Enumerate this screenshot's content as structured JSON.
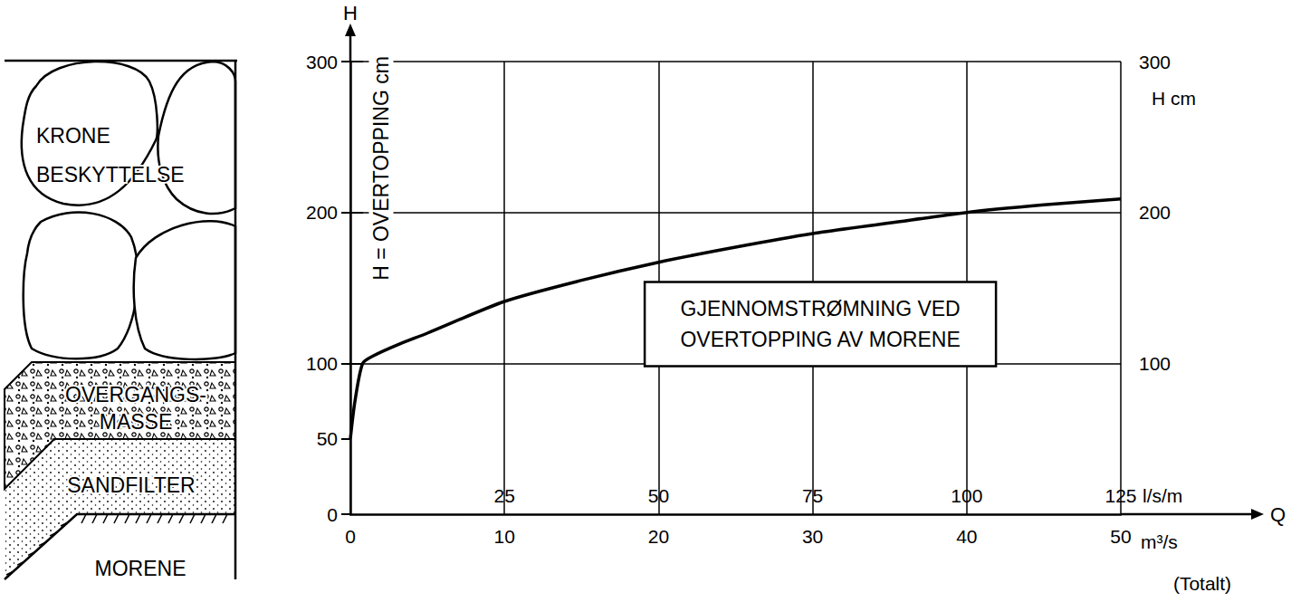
{
  "chart_data": {
    "type": "line",
    "x": [
      0,
      0.3,
      0.8,
      1.5,
      3,
      5,
      10,
      15,
      20,
      25,
      30,
      35,
      40,
      45,
      50
    ],
    "values": [
      50,
      75,
      100,
      105,
      112,
      120,
      141,
      155,
      167,
      177,
      186,
      193,
      200,
      205,
      209
    ],
    "color": "#000000",
    "line_style": "solid",
    "xlim": [
      0,
      50
    ],
    "xticks": [
      0,
      10,
      20,
      30,
      40,
      50
    ],
    "xlabel": "m³/s",
    "xlabel_note": "(Totalt)",
    "x_arrow_label": "Q",
    "x2lim": [
      0,
      125
    ],
    "x2ticks": [
      25,
      50,
      75,
      100,
      125
    ],
    "x2label": "l/s/m",
    "ylim": [
      0,
      300
    ],
    "yticks": [
      0,
      50,
      100,
      200,
      300
    ],
    "ylabel": "H = OVERTOPPING cm",
    "y_arrow_label": "H",
    "y2lim": [
      0,
      300
    ],
    "y2ticks": [
      100,
      200,
      300
    ],
    "y2label": "H cm",
    "grid": true,
    "annotation": [
      "GJENNOMSTRØMNING VED",
      "OVERTOPPING AV MORENE"
    ]
  },
  "diagram": {
    "layers": [
      [
        "KRONE",
        "BESKYTTELSE"
      ],
      [
        "OVERGANGS-",
        "MASSE"
      ],
      [
        "SANDFILTER"
      ],
      [
        "MORENE"
      ]
    ]
  }
}
